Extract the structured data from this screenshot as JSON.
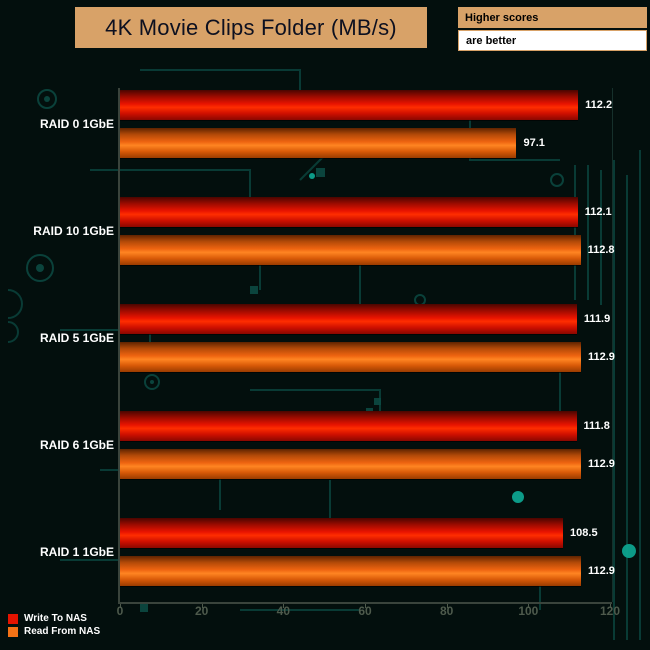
{
  "title": "4K Movie Clips Folder (MB/s)",
  "badges": {
    "line1": "Higher scores",
    "line2": "are better"
  },
  "chart_data": {
    "type": "bar",
    "orientation": "horizontal",
    "title": "4K Movie Clips Folder (MB/s)",
    "categories": [
      "RAID 0 1GbE",
      "RAID 10 1GbE",
      "RAID 5 1GbE",
      "RAID 6 1GbE",
      "RAID 1 1GbE"
    ],
    "series": [
      {
        "name": "Write To NAS",
        "color": "#e41300",
        "values": [
          112.2,
          112.1,
          111.9,
          111.8,
          108.5
        ]
      },
      {
        "name": "Read From NAS",
        "color": "#f47216",
        "values": [
          97.1,
          112.8,
          112.9,
          112.9,
          112.9
        ]
      }
    ],
    "xlim": [
      0,
      120
    ],
    "xticks": [
      0,
      20,
      40,
      60,
      80,
      100,
      120
    ],
    "value_labels": true,
    "legend_position": "bottom-left",
    "grid": false
  },
  "colors": {
    "background": "#030f0d",
    "circuit": "#0c4a43",
    "circuit_bright": "#0da38f",
    "title_box": "#d8a268",
    "axis": "#3a443c",
    "tick_text": "#4e5a4c",
    "bar_write": "#e41300",
    "bar_read": "#f47216",
    "label_text": "#ffffff"
  }
}
